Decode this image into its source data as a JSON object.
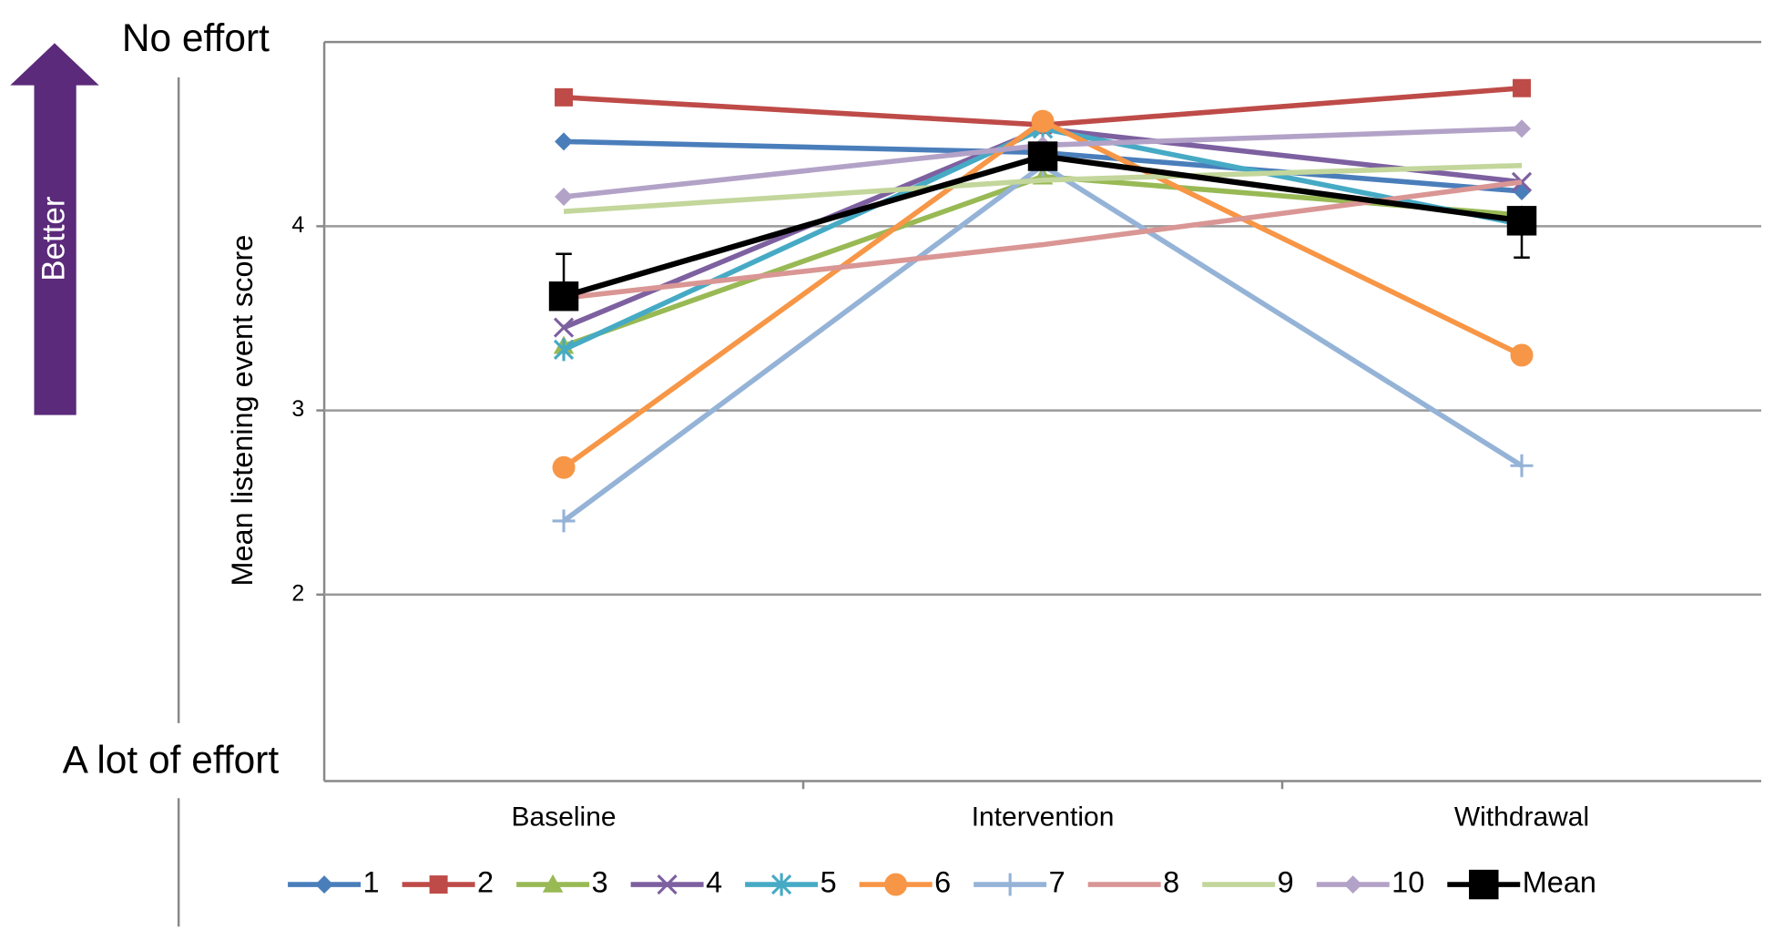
{
  "chart_data": {
    "type": "line",
    "ylabel": "Mean listening event score",
    "annotations": {
      "top": "No effort",
      "bottom": "A lot of effort",
      "arrow": "Better"
    },
    "categories": [
      "Baseline",
      "Intervention",
      "Withdrawal"
    ],
    "ylim": [
      1,
      5
    ],
    "yticks": [
      2,
      3,
      4
    ],
    "grid": true,
    "series": [
      {
        "name": "1",
        "color": "#4a7ebb",
        "marker": "diamond",
        "values": [
          4.46,
          4.4,
          4.19
        ]
      },
      {
        "name": "2",
        "color": "#be4b48",
        "marker": "square",
        "values": [
          4.7,
          4.55,
          4.75
        ]
      },
      {
        "name": "3",
        "color": "#98b954",
        "marker": "triangle",
        "values": [
          3.35,
          4.27,
          4.06
        ]
      },
      {
        "name": "4",
        "color": "#7d60a0",
        "marker": "x",
        "values": [
          3.45,
          4.53,
          4.24
        ]
      },
      {
        "name": "5",
        "color": "#46aac5",
        "marker": "asterisk",
        "values": [
          3.33,
          4.53,
          4.01
        ]
      },
      {
        "name": "6",
        "color": "#f79646",
        "marker": "circle",
        "values": [
          2.69,
          4.57,
          3.3
        ]
      },
      {
        "name": "7",
        "color": "#95b3d7",
        "marker": "plus",
        "values": [
          2.4,
          4.33,
          2.7
        ]
      },
      {
        "name": "8",
        "color": "#d99694",
        "marker": "none",
        "values": [
          3.61,
          3.9,
          4.24
        ]
      },
      {
        "name": "9",
        "color": "#c3d69b",
        "marker": "none",
        "values": [
          4.08,
          4.25,
          4.33
        ]
      },
      {
        "name": "10",
        "color": "#b3a2c7",
        "marker": "diamond",
        "values": [
          4.16,
          4.44,
          4.53
        ]
      },
      {
        "name": "Mean",
        "color": "#000000",
        "marker": "bigsquare",
        "values": [
          3.62,
          4.38,
          4.03
        ],
        "errors": [
          0.23,
          null,
          0.2
        ]
      }
    ]
  }
}
